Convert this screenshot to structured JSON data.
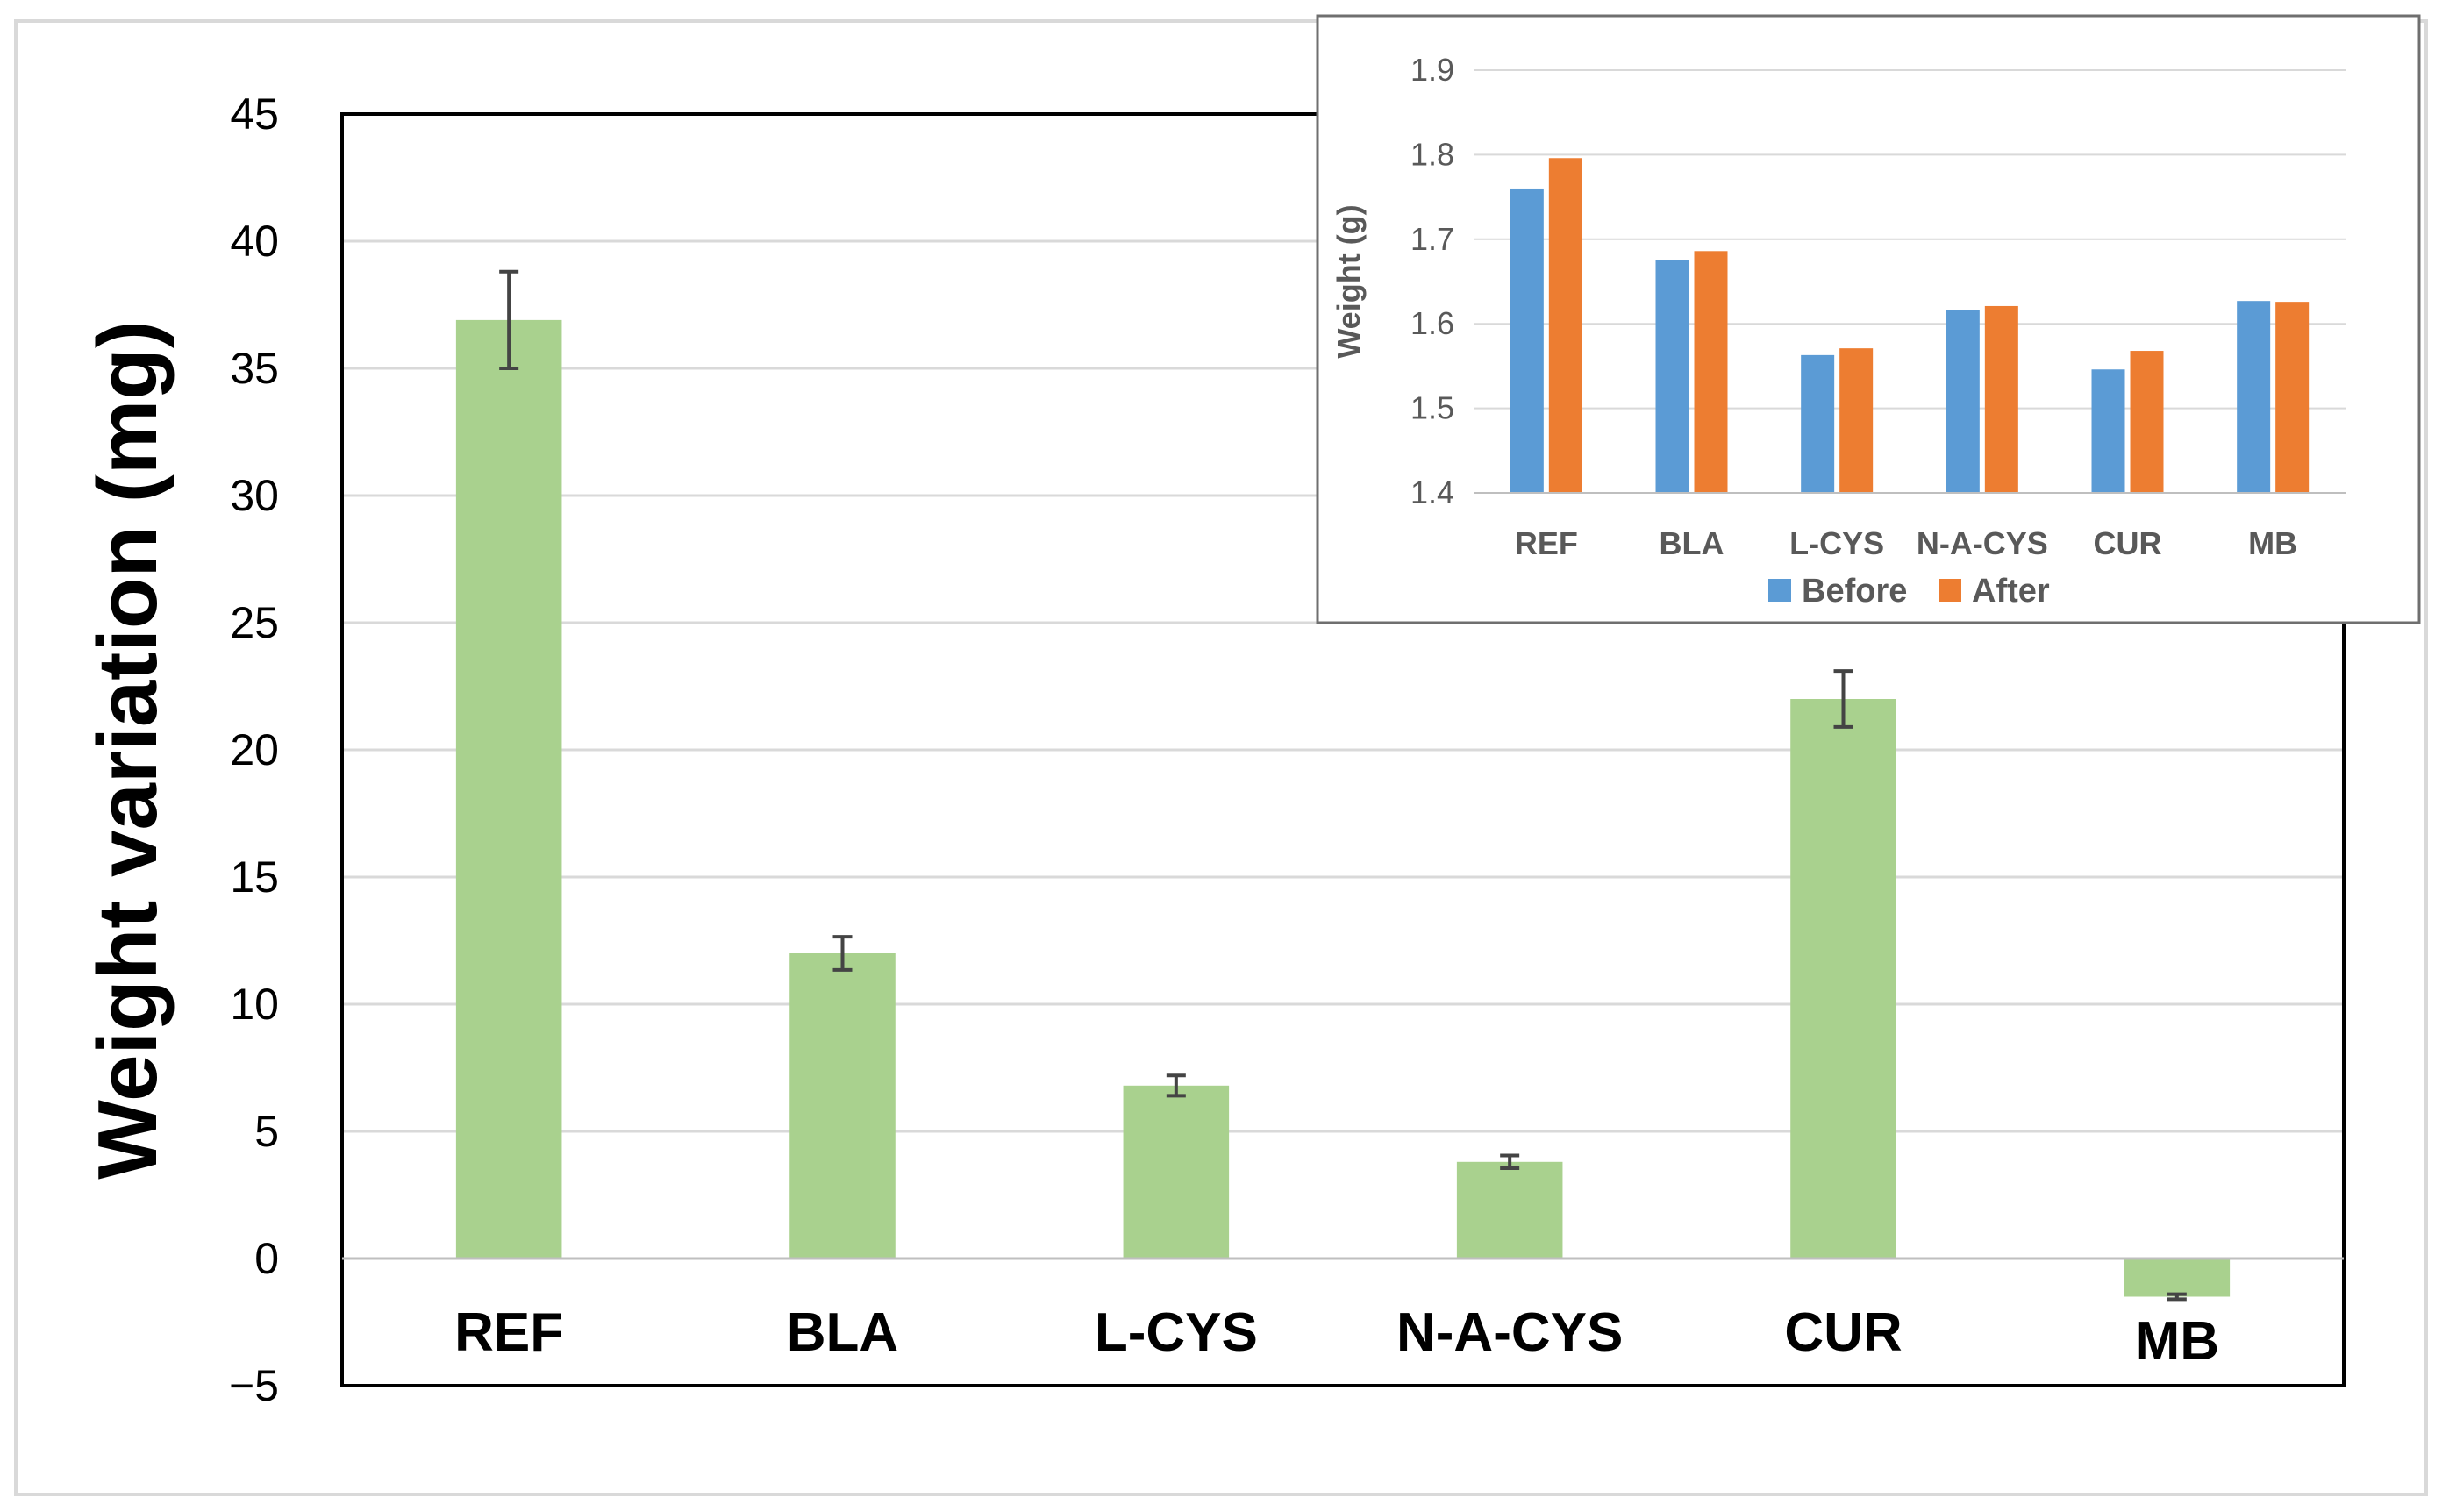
{
  "chart_data": [
    {
      "id": "main",
      "type": "bar",
      "title": "",
      "xlabel": "",
      "ylabel": "Weight variation (mg)",
      "ylim": [
        -5,
        45
      ],
      "ytick_step": 5,
      "ytick_labels": [
        "−5",
        "0",
        "5",
        "10",
        "15",
        "20",
        "25",
        "30",
        "35",
        "40",
        "45"
      ],
      "grid": true,
      "categories": [
        "REF",
        "BLA",
        "L-CYS",
        "N-A-CYS",
        "CUR",
        "MB"
      ],
      "series": [
        {
          "name": "Weight variation",
          "color": "#a9d18e",
          "values": [
            36.9,
            12.0,
            6.8,
            3.8,
            22.0,
            -1.5
          ],
          "errors": [
            1.9,
            0.65,
            0.4,
            0.25,
            1.1,
            0.1
          ]
        }
      ]
    },
    {
      "id": "inset",
      "type": "bar",
      "title": "",
      "xlabel": "",
      "ylabel": "Weight (g)",
      "ylim": [
        1.4,
        1.9
      ],
      "ytick_step": 0.1,
      "ytick_labels": [
        "1.4",
        "1.5",
        "1.6",
        "1.7",
        "1.8",
        "1.9"
      ],
      "grid": true,
      "legend_position": "bottom",
      "categories": [
        "REF",
        "BLA",
        "L-CYS",
        "N-A-CYS",
        "CUR",
        "MB"
      ],
      "series": [
        {
          "name": "Before",
          "color": "#5b9bd5",
          "values": [
            1.76,
            1.675,
            1.563,
            1.616,
            1.546,
            1.627
          ]
        },
        {
          "name": "After",
          "color": "#ed7d31",
          "values": [
            1.796,
            1.686,
            1.571,
            1.621,
            1.568,
            1.626
          ]
        }
      ]
    }
  ]
}
